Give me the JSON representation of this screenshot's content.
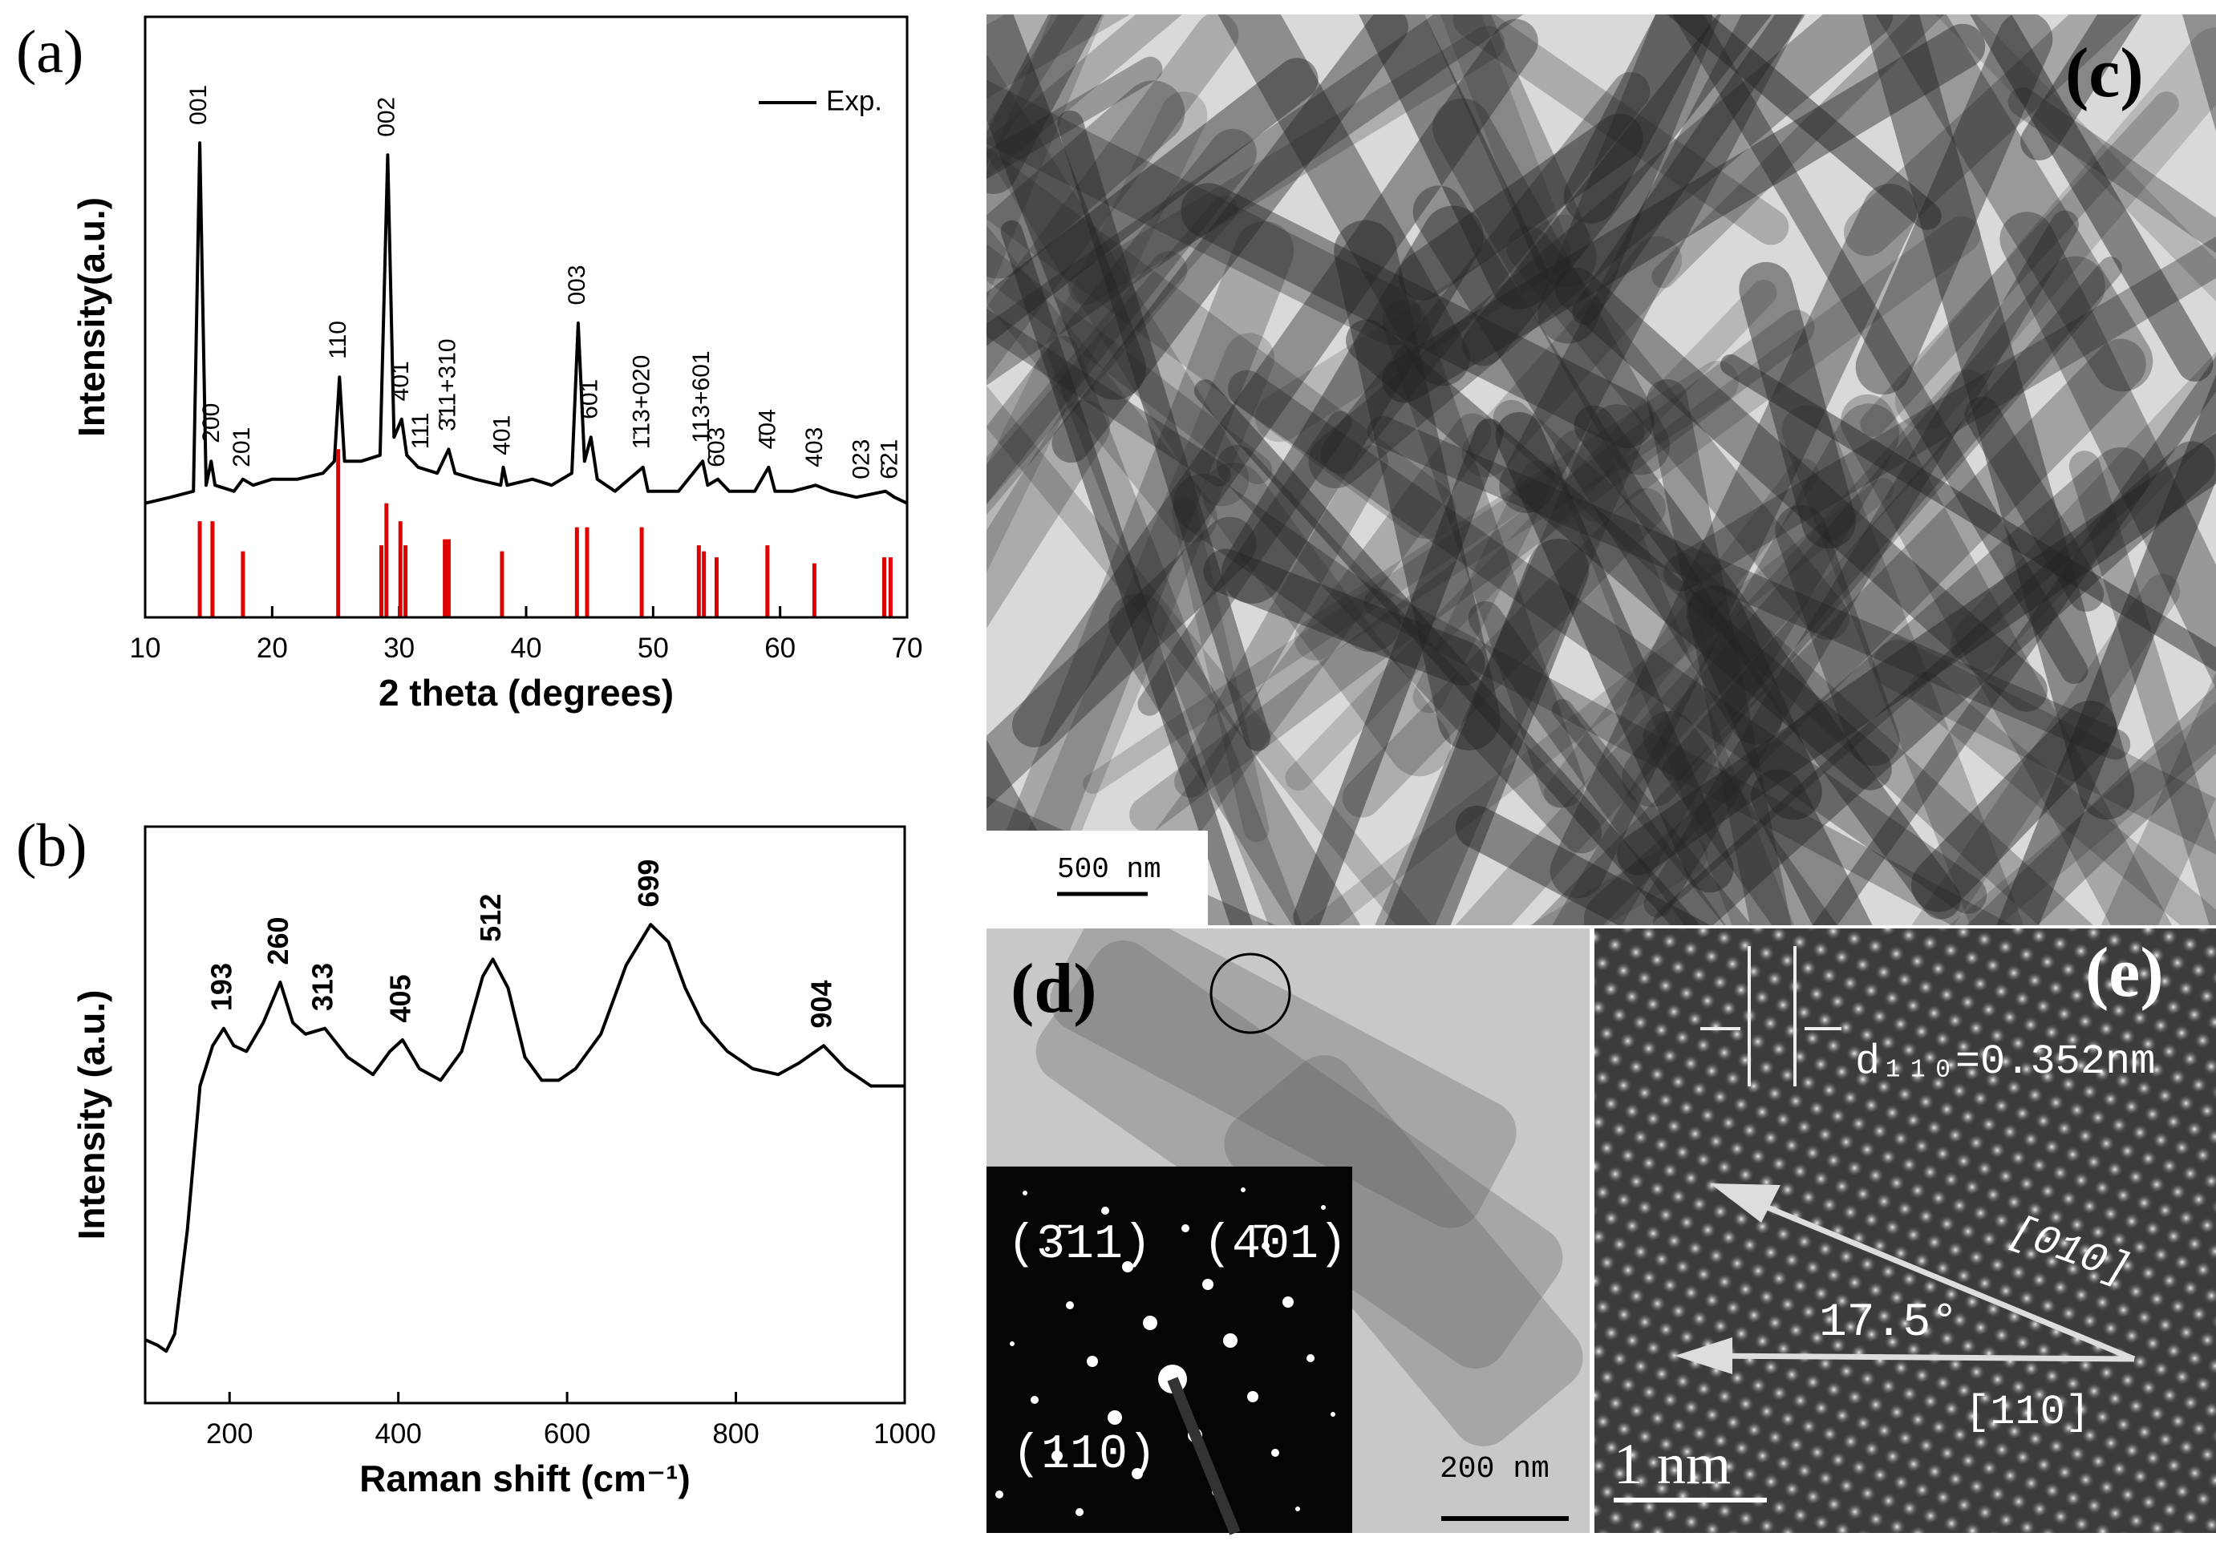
{
  "chart_data": [
    {
      "type": "line",
      "panel_label": "(a)",
      "x_label": "2 theta (degrees)",
      "y_label": "Intensity(a.u.)",
      "xlim": [
        10,
        70
      ],
      "xticks": [
        10,
        20,
        30,
        40,
        50,
        60,
        70
      ],
      "ylim": [
        0,
        100
      ],
      "yticks": [],
      "legend": "upper right",
      "series": [
        {
          "name": "Exp.",
          "color": "#000000",
          "x": [
            10,
            12,
            13.8,
            14.3,
            14.8,
            15.2,
            15.5,
            17,
            17.7,
            18.5,
            20,
            22,
            24,
            24.9,
            25.3,
            25.7,
            27,
            28.5,
            29.1,
            29.6,
            30.2,
            30.6,
            31.5,
            33,
            33.9,
            34.4,
            36,
            38,
            38.2,
            38.5,
            40.5,
            42,
            43.6,
            44.1,
            44.6,
            45.1,
            45.6,
            47,
            49.2,
            49.6,
            52,
            53.9,
            54.3,
            55.1,
            56,
            58,
            59.1,
            59.6,
            61,
            62.8,
            64,
            66,
            68.3,
            69,
            70
          ],
          "values": [
            19,
            20,
            21,
            79,
            22,
            26,
            22,
            21,
            23,
            22,
            23,
            23,
            24,
            26,
            40,
            26,
            26,
            27,
            77,
            30,
            33,
            27,
            25,
            24,
            28,
            24,
            23,
            22,
            25,
            22,
            23,
            22,
            24,
            49,
            26,
            30,
            23,
            21,
            25,
            21,
            21,
            26,
            22,
            23,
            21,
            21,
            25,
            21,
            21,
            22,
            21,
            20,
            21,
            20,
            19
          ]
        },
        {
          "style": "sticks",
          "color": "#e00000",
          "x": [
            14.3,
            15.3,
            17.7,
            25.2,
            28.6,
            29.0,
            30.1,
            30.5,
            33.6,
            33.9,
            38.1,
            44.0,
            44.8,
            49.1,
            53.6,
            54.0,
            55.0,
            59.0,
            62.7,
            68.2,
            68.7
          ],
          "values": [
            16,
            16,
            11,
            28,
            12,
            19,
            16,
            12,
            13,
            13,
            11,
            15,
            15,
            15,
            12,
            11,
            10,
            12,
            9,
            10,
            10
          ]
        }
      ],
      "annotations": [
        {
          "text": "001",
          "x": 14.3,
          "y": 82
        },
        {
          "text": "200",
          "x": 15.3,
          "y": 29
        },
        {
          "text": "201",
          "x": 17.7,
          "y": 25
        },
        {
          "text": "110",
          "x": 25.3,
          "y": 43
        },
        {
          "text": "002",
          "x": 29.1,
          "y": 80
        },
        {
          "text": "4̄01",
          "x": 30.2,
          "y": 36
        },
        {
          "text": "111",
          "x": 31.8,
          "y": 28
        },
        {
          "text": "3̄11+310",
          "x": 33.9,
          "y": 31
        },
        {
          "text": "401",
          "x": 38.2,
          "y": 27
        },
        {
          "text": "003",
          "x": 44.1,
          "y": 52
        },
        {
          "text": "6̄01",
          "x": 45.1,
          "y": 33
        },
        {
          "text": "1̄13+020",
          "x": 49.2,
          "y": 28
        },
        {
          "text": "113+601",
          "x": 53.9,
          "y": 29
        },
        {
          "text": "6̄03",
          "x": 55.1,
          "y": 25
        },
        {
          "text": "4̄04",
          "x": 59.1,
          "y": 28
        },
        {
          "text": "403",
          "x": 62.8,
          "y": 25
        },
        {
          "text": "023",
          "x": 66.5,
          "y": 23
        },
        {
          "text": "6̄21",
          "x": 68.7,
          "y": 23
        }
      ]
    },
    {
      "type": "line",
      "panel_label": "(b)",
      "x_label": "Raman shift (cm⁻¹)",
      "y_label": "Intensity (a.u.)",
      "xlim": [
        100,
        1000
      ],
      "xticks": [
        200,
        400,
        600,
        800,
        1000
      ],
      "ylim": [
        0,
        100
      ],
      "yticks": [],
      "series": [
        {
          "color": "#000000",
          "x": [
            100,
            115,
            125,
            135,
            150,
            165,
            180,
            193,
            205,
            220,
            240,
            260,
            275,
            290,
            313,
            340,
            370,
            390,
            405,
            425,
            450,
            475,
            500,
            512,
            530,
            550,
            570,
            590,
            610,
            640,
            670,
            699,
            720,
            740,
            760,
            790,
            820,
            850,
            875,
            904,
            930,
            960,
            1000
          ],
          "values": [
            11,
            10,
            9,
            12,
            30,
            55,
            62,
            65,
            62,
            61,
            66,
            73,
            66,
            64,
            65,
            60,
            57,
            61,
            63,
            58,
            56,
            61,
            74,
            77,
            72,
            60,
            56,
            56,
            58,
            64,
            76,
            83,
            80,
            72,
            66,
            61,
            58,
            57,
            59,
            62,
            58,
            55,
            55
          ]
        }
      ],
      "annotations": [
        {
          "text": "193",
          "x": 193,
          "y": 68
        },
        {
          "text": "260",
          "x": 260,
          "y": 76
        },
        {
          "text": "313",
          "x": 313,
          "y": 68
        },
        {
          "text": "405",
          "x": 405,
          "y": 66
        },
        {
          "text": "512",
          "x": 512,
          "y": 80
        },
        {
          "text": "699",
          "x": 699,
          "y": 86
        },
        {
          "text": "904",
          "x": 904,
          "y": 65
        }
      ]
    }
  ],
  "panels": {
    "c": {
      "label": "(c)",
      "scale_bar": "500 nm"
    },
    "d": {
      "label": "(d)",
      "scale_bar": "200 nm",
      "spots": [
        "(3̄11)",
        "(4̄01)",
        "(110)"
      ]
    },
    "e": {
      "label": "(e)",
      "scale_bar": "1 nm",
      "spacing": "d₁₁₀=0.352nm",
      "direction_1": "[010]",
      "angle": "17.5°",
      "direction_2": "[110]"
    }
  }
}
